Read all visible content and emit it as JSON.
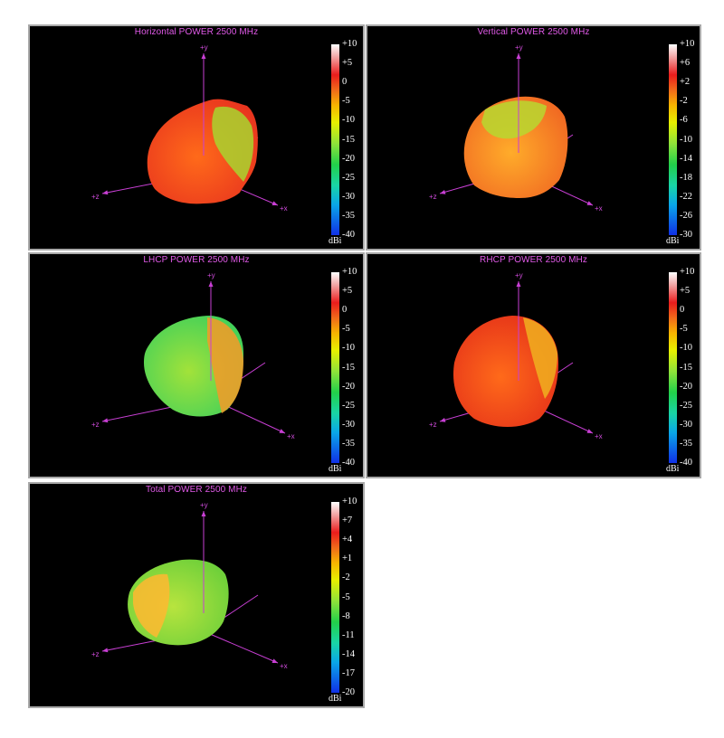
{
  "chart_data": [
    {
      "type": "3d-radiation-pattern",
      "title": "Horizontal POWER 2500  MHz",
      "colorbar": {
        "unit": "dBi",
        "ticks": [
          "+10",
          "+5",
          "0",
          "-5",
          "-10",
          "-15",
          "-20",
          "-25",
          "-30",
          "-35",
          "-40"
        ],
        "range": [
          -40,
          10
        ]
      },
      "axes": [
        "+y",
        "+z",
        "+x"
      ],
      "dominant_color": "#ee4b22"
    },
    {
      "type": "3d-radiation-pattern",
      "title": "Vertical POWER 2500  MHz",
      "colorbar": {
        "unit": "dBi",
        "ticks": [
          "+10",
          "+6",
          "+2",
          "-2",
          "-6",
          "-10",
          "-14",
          "-18",
          "-22",
          "-26",
          "-30"
        ],
        "range": [
          -30,
          10
        ]
      },
      "axes": [
        "+y",
        "+z",
        "+x"
      ],
      "dominant_color": "#f6862a"
    },
    {
      "type": "3d-radiation-pattern",
      "title": "LHCP POWER 2500  MHz",
      "colorbar": {
        "unit": "dBi",
        "ticks": [
          "+10",
          "+5",
          "0",
          "-5",
          "-10",
          "-15",
          "-20",
          "-25",
          "-30",
          "-35",
          "-40"
        ],
        "range": [
          -40,
          10
        ]
      },
      "axes": [
        "+y",
        "+z",
        "+x"
      ],
      "dominant_color": "#8ed437"
    },
    {
      "type": "3d-radiation-pattern",
      "title": "RHCP POWER 2500  MHz",
      "colorbar": {
        "unit": "dBi",
        "ticks": [
          "+10",
          "+5",
          "0",
          "-5",
          "-10",
          "-15",
          "-20",
          "-25",
          "-30",
          "-35",
          "-40"
        ],
        "range": [
          -40,
          10
        ]
      },
      "axes": [
        "+y",
        "+z",
        "+x"
      ],
      "dominant_color": "#ef4d1e"
    },
    {
      "type": "3d-radiation-pattern",
      "title": "Total POWER 2500  MHz",
      "colorbar": {
        "unit": "dBi",
        "ticks": [
          "+10",
          "+7",
          "+4",
          "+1",
          "-2",
          "-5",
          "-8",
          "-11",
          "-14",
          "-17",
          "-20"
        ],
        "range": [
          -20,
          10
        ]
      },
      "axes": [
        "+y",
        "+z",
        "+x"
      ],
      "dominant_color": "#9ad53a"
    }
  ]
}
